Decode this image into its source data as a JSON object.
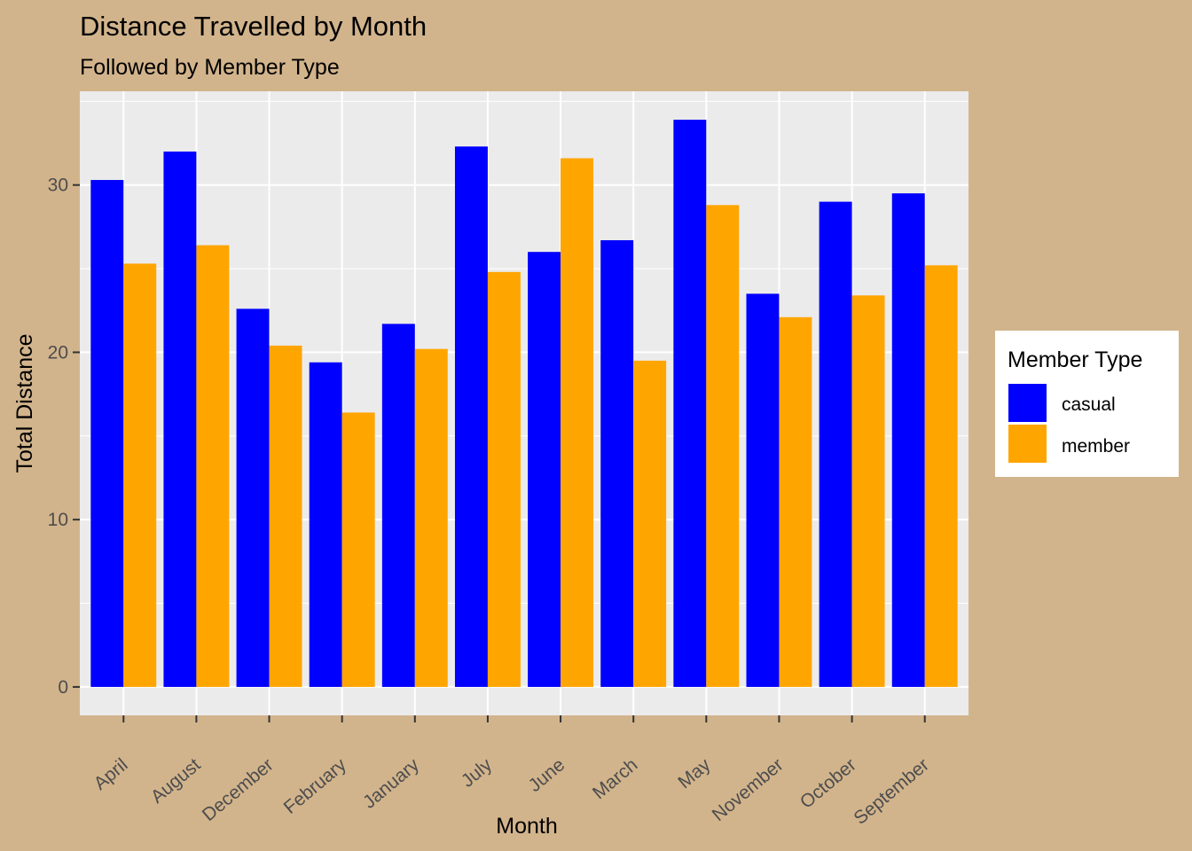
{
  "chart_data": {
    "type": "bar",
    "title": "Distance Travelled by Month",
    "subtitle": "Followed by Member Type",
    "xlabel": "Month",
    "ylabel": "Total Distance",
    "categories": [
      "April",
      "August",
      "December",
      "February",
      "January",
      "July",
      "June",
      "March",
      "May",
      "November",
      "October",
      "September"
    ],
    "series": [
      {
        "name": "casual",
        "values": [
          30.3,
          32.0,
          22.6,
          19.4,
          21.7,
          32.3,
          26.0,
          26.7,
          33.9,
          23.5,
          29.0,
          29.5
        ]
      },
      {
        "name": "member",
        "values": [
          25.3,
          26.4,
          20.4,
          16.4,
          20.2,
          24.8,
          31.6,
          19.5,
          28.8,
          22.1,
          23.4,
          25.2
        ]
      }
    ],
    "yticks": [
      0,
      10,
      20,
      30
    ],
    "ylim": [
      -1.7,
      35.6
    ],
    "grid": true,
    "legend": {
      "title": "Member Type",
      "position": "right"
    },
    "colors": {
      "casual": "#0000FF",
      "member": "#FFA500",
      "panel": "#EBEBEB",
      "background": "#D2B48C",
      "grid": "#FFFFFF",
      "tick_text": "#4D4D4D",
      "text": "#000000"
    }
  }
}
